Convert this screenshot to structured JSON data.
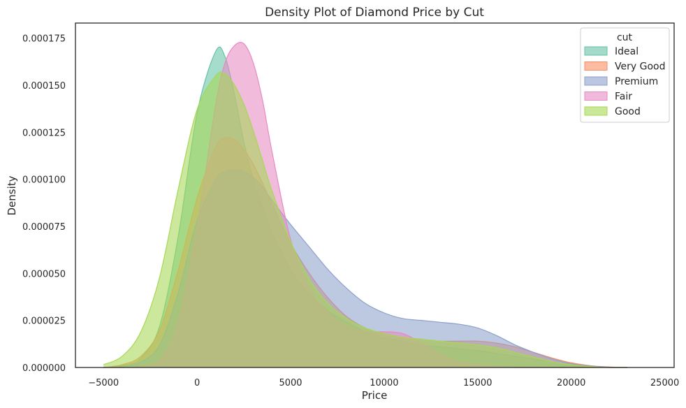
{
  "chart_data": {
    "type": "area",
    "title": "Density Plot of Diamond Price by Cut",
    "xlabel": "Price",
    "ylabel": "Density",
    "xlim": [
      -6500,
      25500
    ],
    "ylim": [
      0,
      0.000183
    ],
    "xticks": [
      -5000,
      0,
      5000,
      10000,
      15000,
      20000,
      25000
    ],
    "xtick_labels": [
      "−5000",
      "0",
      "5000",
      "10000",
      "15000",
      "20000",
      "25000"
    ],
    "yticks": [
      0,
      2.5e-05,
      5e-05,
      7.5e-05,
      0.0001,
      0.000125,
      0.00015,
      0.000175
    ],
    "ytick_labels": [
      "0.000000",
      "0.000025",
      "0.000050",
      "0.000075",
      "0.000100",
      "0.000125",
      "0.000150",
      "0.000175"
    ],
    "grid": false,
    "legend": {
      "title": "cut",
      "position": "top-right"
    },
    "x": [
      -5000,
      -4000,
      -3000,
      -2000,
      -1000,
      0,
      1000,
      1500,
      2000,
      2500,
      3000,
      3500,
      4000,
      5000,
      6000,
      7000,
      8000,
      9000,
      10000,
      11000,
      12000,
      13000,
      14000,
      15000,
      16000,
      17000,
      18000,
      19000,
      20000,
      21000,
      22000,
      23000
    ],
    "series": [
      {
        "name": "Ideal",
        "color": "#66c2a5",
        "values": [
          0,
          1e-06,
          5e-06,
          2.2e-05,
          7e-05,
          0.000135,
          0.000168,
          0.000165,
          0.000145,
          0.00012,
          0.0001,
          8.5e-05,
          7.2e-05,
          5.2e-05,
          3.9e-05,
          3e-05,
          2.4e-05,
          1.9e-05,
          1.6e-05,
          1.4e-05,
          1.2e-05,
          1.1e-05,
          1e-05,
          9e-06,
          7.5e-06,
          6e-06,
          4.5e-06,
          3e-06,
          1.5e-06,
          5e-07,
          0,
          0
        ]
      },
      {
        "name": "Very Good",
        "color": "#fc8d62",
        "values": [
          0,
          1.5e-06,
          6e-06,
          2e-05,
          5.2e-05,
          9e-05,
          0.000117,
          0.000122,
          0.000121,
          0.000116,
          0.000108,
          9.8e-05,
          8.7e-05,
          6.6e-05,
          5e-05,
          3.7e-05,
          2.7e-05,
          2.1e-05,
          1.8e-05,
          1.6e-05,
          1.5e-05,
          1.4e-05,
          1.4e-05,
          1.4e-05,
          1.3e-05,
          1.1e-05,
          8e-06,
          5e-06,
          2.5e-06,
          1e-06,
          3e-07,
          0
        ]
      },
      {
        "name": "Premium",
        "color": "#8da0cb",
        "values": [
          0,
          5e-07,
          3e-06,
          1.2e-05,
          4e-05,
          7.8e-05,
          0.0001,
          0.000104,
          0.000105,
          0.000104,
          0.000101,
          9.6e-05,
          8.9e-05,
          7.6e-05,
          6.4e-05,
          5.2e-05,
          4.2e-05,
          3.4e-05,
          2.9e-05,
          2.6e-05,
          2.5e-05,
          2.4e-05,
          2.3e-05,
          2.1e-05,
          1.7e-05,
          1.2e-05,
          8e-06,
          4.5e-06,
          2e-06,
          8e-07,
          2e-07,
          0
        ]
      },
      {
        "name": "Fair",
        "color": "#e78ac3",
        "values": [
          0,
          0,
          5e-07,
          4e-06,
          2.4e-05,
          7.5e-05,
          0.00014,
          0.000162,
          0.000171,
          0.000172,
          0.000162,
          0.000142,
          0.000115,
          6.8e-05,
          4.2e-05,
          2.9e-05,
          2.2e-05,
          1.9e-05,
          1.9e-05,
          1.8e-05,
          1.3e-05,
          7e-06,
          3e-06,
          1.5e-06,
          5e-07,
          0,
          0,
          0,
          0,
          0,
          0,
          0
        ]
      },
      {
        "name": "Good",
        "color": "#a6d854",
        "values": [
          1.5e-06,
          6e-06,
          1.9e-05,
          4.8e-05,
          9.5e-05,
          0.000137,
          0.000155,
          0.000156,
          0.00015,
          0.00014,
          0.000126,
          0.00011,
          9.4e-05,
          6.7e-05,
          4.7e-05,
          3.4e-05,
          2.6e-05,
          2.1e-05,
          1.8e-05,
          1.6e-05,
          1.5e-05,
          1.4e-05,
          1.3e-05,
          1.2e-05,
          1.05e-05,
          8e-06,
          5.5e-06,
          3e-06,
          1.5e-06,
          5e-07,
          0,
          0
        ]
      }
    ]
  }
}
